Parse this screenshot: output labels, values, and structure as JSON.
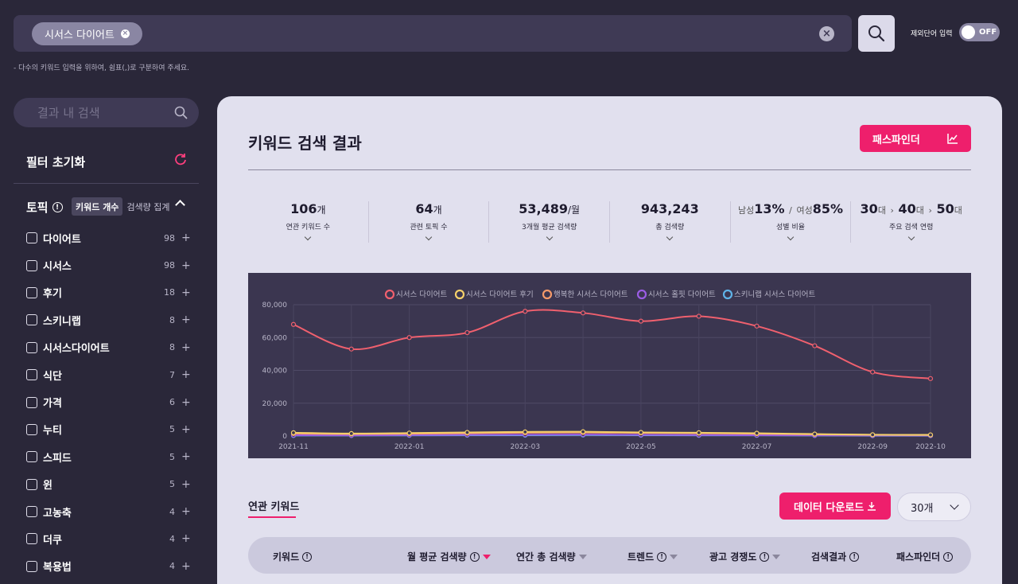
{
  "search": {
    "chip_label": "시서스 다이어트",
    "exclude_label": "제외단어 입력",
    "toggle_label": "OFF",
    "hint": "- 다수의 키워드 입력을 위하여, 쉼표(,)로 구분하여 주세요."
  },
  "sidebar": {
    "search_placeholder": "결과 내 검색",
    "filter_reset": "필터 초기화",
    "topic_title": "토픽",
    "seg_keyword_count": "키워드 개수",
    "seg_volume_sum": "검색량 집계",
    "topics": [
      {
        "label": "다이어트",
        "count": "98"
      },
      {
        "label": "시서스",
        "count": "98"
      },
      {
        "label": "후기",
        "count": "18"
      },
      {
        "label": "스키니랩",
        "count": "8"
      },
      {
        "label": "시서스다이어트",
        "count": "8"
      },
      {
        "label": "식단",
        "count": "7"
      },
      {
        "label": "가격",
        "count": "6"
      },
      {
        "label": "누티",
        "count": "5"
      },
      {
        "label": "스피드",
        "count": "5"
      },
      {
        "label": "윈",
        "count": "5"
      },
      {
        "label": "고농축",
        "count": "4"
      },
      {
        "label": "더쿠",
        "count": "4"
      },
      {
        "label": "복용법",
        "count": "4"
      }
    ]
  },
  "main": {
    "title": "키워드 검색 결과",
    "pathfinder_label": "패스파인더",
    "stats": [
      {
        "value": "106",
        "unit": "개",
        "label": "연관 키워드 수"
      },
      {
        "value": "64",
        "unit": "개",
        "label": "관련 토픽 수"
      },
      {
        "value": "53,489",
        "unit": "/월",
        "label": "3개월 평균 검색량"
      },
      {
        "value": "943,243",
        "unit": "",
        "label": "총 검색량"
      },
      {
        "label": "성별 비율",
        "male_prefix": "남성",
        "male_value": "13%",
        "sep": "/",
        "female_prefix": "여성",
        "female_value": "85%"
      },
      {
        "label": "주요 검색 연령",
        "age1": "30",
        "age2": "40",
        "age3": "50",
        "unit": "대",
        "arrow": "›"
      }
    ],
    "related_tab": "연관 키워드",
    "download_label": "데이터 다운로드",
    "page_size": "30개",
    "table_headers": [
      "키워드",
      "월 평균 검색량",
      "연간 총 검색량",
      "트렌드",
      "광고 경쟁도",
      "검색결과",
      "패스파인더"
    ]
  },
  "chart_data": {
    "type": "line",
    "x": [
      "2021-11",
      "2021-12",
      "2022-01",
      "2022-02",
      "2022-03",
      "2022-04",
      "2022-05",
      "2022-06",
      "2022-07",
      "2022-08",
      "2022-09",
      "2022-10"
    ],
    "x_tick_labels": [
      "2021-11",
      "2022-01",
      "2022-03",
      "2022-05",
      "2022-07",
      "2022-09",
      "2022-10"
    ],
    "y_ticks": [
      "80,000",
      "60,000",
      "40,000",
      "20,000",
      "0"
    ],
    "ylim": [
      0,
      80000
    ],
    "grid": true,
    "legend_position": "top",
    "series": [
      {
        "name": "시서스 다이어트",
        "color": "#f0606e",
        "values": [
          68000,
          53000,
          60000,
          63000,
          76000,
          75000,
          70000,
          73000,
          67000,
          55000,
          39000,
          35000
        ]
      },
      {
        "name": "시서스 다이어트 후기",
        "color": "#f5d06a",
        "values": [
          2000,
          1500,
          1800,
          2200,
          2500,
          2600,
          2200,
          2000,
          1700,
          1200,
          800,
          700
        ]
      },
      {
        "name": "행복한 시서스 다이어트",
        "color": "#f59a6a",
        "values": [
          1500,
          1200,
          1400,
          1700,
          2000,
          2100,
          1900,
          1700,
          1400,
          1000,
          700,
          600
        ]
      },
      {
        "name": "시서스 홀핏 다이어트",
        "color": "#9b5de5",
        "values": [
          500,
          400,
          600,
          700,
          800,
          900,
          700,
          600,
          500,
          400,
          300,
          300
        ]
      },
      {
        "name": "스키니랩 시서스 다이어트",
        "color": "#5fb3e8",
        "values": [
          300,
          300,
          400,
          500,
          500,
          600,
          500,
          400,
          400,
          300,
          200,
          200
        ]
      }
    ]
  }
}
